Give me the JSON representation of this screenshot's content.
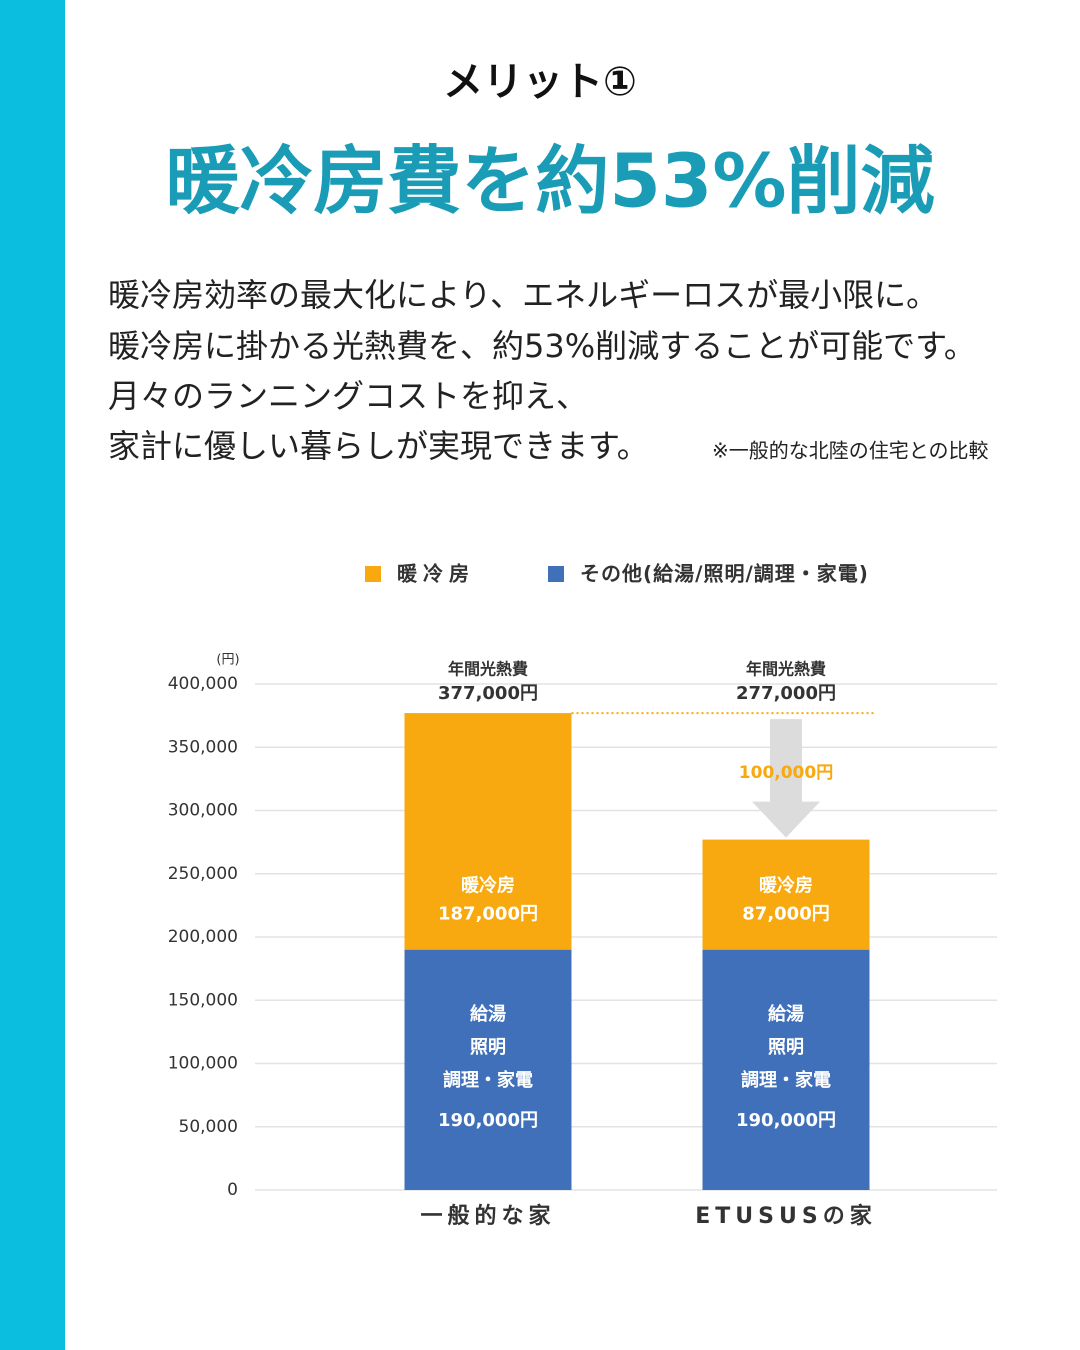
{
  "header": {
    "subtitle": "メリット①",
    "title": "暖冷房費を約53%削減"
  },
  "body": {
    "lines": [
      "暖冷房効率の最大化により、エネルギーロスが最小限に。",
      "暖冷房に掛かる光熱費を、約53%削減することが可能です。",
      "月々のランニングコストを抑え、",
      "家計に優しい暮らしが実現できます。"
    ],
    "note": "※一般的な北陸の住宅との比較"
  },
  "chart_data": {
    "type": "stacked-bar",
    "y_unit": "(円)",
    "categories": [
      "一般的な家",
      "ETUSUSの家"
    ],
    "series": [
      {
        "name": "その他(給湯/照明/調理・家電)",
        "color": "#3f70b9",
        "segment_label": [
          "給湯",
          "照明",
          "調理・家電"
        ],
        "values": [
          190000,
          190000
        ],
        "value_labels": [
          "190,000円",
          "190,000円"
        ]
      },
      {
        "name": "暖冷房",
        "color": "#f7a90f",
        "segment_label": [
          "暖冷房"
        ],
        "values": [
          187000,
          87000
        ],
        "value_labels": [
          "187,000円",
          "87,000円"
        ]
      }
    ],
    "totals": {
      "label": "年間光熱費",
      "values": [
        377000,
        277000
      ],
      "value_labels": [
        "377,000円",
        "277,000円"
      ]
    },
    "difference": {
      "value": 100000,
      "value_label": "100,000円"
    },
    "ylim": [
      0,
      400000
    ],
    "yticks": [
      0,
      {
        "value": 50000,
        "label": "50,000"
      },
      {
        "value": 100000,
        "label": "100,000"
      },
      {
        "value": 150000,
        "label": "150,000"
      },
      {
        "value": 200000,
        "label": "200,000"
      },
      {
        "value": 250000,
        "label": "250,000"
      },
      {
        "value": 300000,
        "label": "300,000"
      },
      {
        "value": 350000,
        "label": "350,000"
      },
      {
        "value": 400000,
        "label": "400,000"
      }
    ],
    "grid": true
  }
}
